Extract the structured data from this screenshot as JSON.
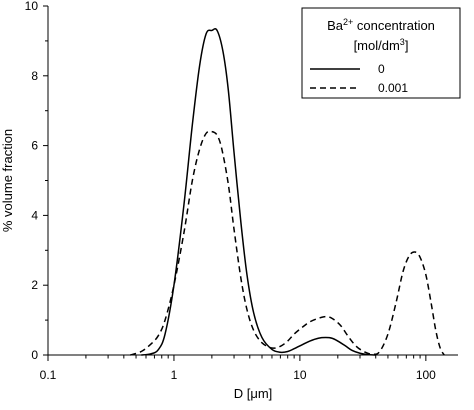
{
  "chart_data": {
    "type": "line",
    "title": "",
    "xlabel": "D [μm]",
    "ylabel": "% volume fraction",
    "x_scale": "log",
    "xlim": [
      0.1,
      180
    ],
    "ylim": [
      0,
      10
    ],
    "x_ticks": [
      0.1,
      1,
      10,
      100
    ],
    "x_tick_labels": [
      "0.1",
      "1",
      "10",
      "100"
    ],
    "y_ticks": [
      0,
      2,
      4,
      6,
      8,
      10
    ],
    "y_tick_labels": [
      "0",
      "2",
      "4",
      "6",
      "8",
      "10"
    ],
    "grid": false,
    "legend": {
      "placement": "top-right",
      "title_line1_main": "Ba",
      "title_line1_sup": "2+",
      "title_line1_rest": " concentration",
      "title_line2_main": "[mol/dm",
      "title_line2_sup": "3",
      "title_line2_rest": "]"
    },
    "series": [
      {
        "name": "0",
        "line_style": "solid",
        "color": "#000000",
        "x": [
          0.55,
          0.65,
          0.75,
          0.85,
          1.0,
          1.2,
          1.4,
          1.6,
          1.8,
          2.0,
          2.2,
          2.45,
          2.7,
          3.0,
          3.4,
          3.8,
          4.3,
          5.0,
          6.0,
          7.0,
          8.0,
          9.0,
          10.5,
          12.0,
          14.0,
          16.0,
          18.0,
          20.0,
          23.0,
          26.0,
          30.0,
          35.0,
          40.0
        ],
        "y": [
          0.0,
          0.03,
          0.15,
          0.6,
          2.0,
          4.3,
          6.6,
          8.3,
          9.2,
          9.3,
          9.3,
          8.7,
          7.6,
          5.8,
          3.8,
          2.3,
          1.2,
          0.5,
          0.16,
          0.08,
          0.1,
          0.18,
          0.3,
          0.4,
          0.48,
          0.5,
          0.48,
          0.4,
          0.26,
          0.13,
          0.05,
          0.01,
          0.0
        ]
      },
      {
        "name": "0.001",
        "line_style": "dashed",
        "color": "#000000",
        "x": [
          0.45,
          0.55,
          0.65,
          0.75,
          0.85,
          1.0,
          1.2,
          1.4,
          1.6,
          1.8,
          2.0,
          2.2,
          2.4,
          2.7,
          3.0,
          3.4,
          3.8,
          4.3,
          5.0,
          6.0,
          7.0,
          8.0,
          9.0,
          10.5,
          12.0,
          14.0,
          16.0,
          18.0,
          21.0,
          24.0,
          28.0,
          33.0,
          38.0,
          43.0,
          50.0,
          58.0,
          66.0,
          74.0,
          82.0,
          90.0,
          100.0,
          110.0,
          120.0,
          130.0,
          140.0
        ],
        "y": [
          0.0,
          0.1,
          0.3,
          0.55,
          1.0,
          2.0,
          3.5,
          5.0,
          5.9,
          6.35,
          6.4,
          6.3,
          5.9,
          4.9,
          3.6,
          2.2,
          1.3,
          0.7,
          0.35,
          0.2,
          0.25,
          0.4,
          0.6,
          0.8,
          0.95,
          1.05,
          1.1,
          1.05,
          0.85,
          0.55,
          0.25,
          0.08,
          0.02,
          0.1,
          0.6,
          1.5,
          2.4,
          2.85,
          2.95,
          2.8,
          2.3,
          1.5,
          0.7,
          0.2,
          0.0
        ]
      }
    ]
  }
}
